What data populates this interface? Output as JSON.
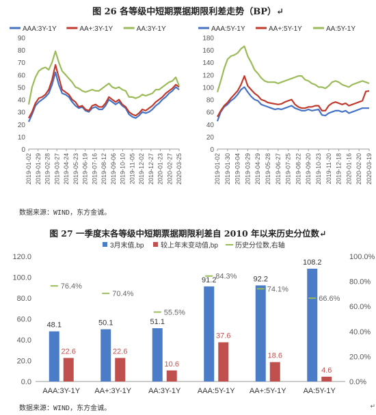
{
  "fig26": {
    "title": "图 26 各等级中短期票据期限利差走势（BP）↵"
  },
  "fig27": {
    "title": "图 27 一季度末各等级中短期票据期限利差自 2010 年以来历史分位数↵"
  },
  "source_note": "数据来源：WIND，东方金诚。",
  "source_note2": "数据来源：WIND，东方金诚。",
  "colors": {
    "blue": "#4472C4",
    "red": "#C0392B",
    "green": "#9BBB59",
    "bar_blue": "#4A7CC7",
    "bar_red": "#C0504D",
    "axis": "#888888"
  },
  "chart_data": [
    {
      "type": "line",
      "xlabel": "",
      "ylabel": "",
      "ylim": [
        0,
        90
      ],
      "y_ticks": [
        "0",
        "10",
        "20",
        "30",
        "40",
        "50",
        "60",
        "70",
        "80",
        "90"
      ],
      "x_tick_labels": [
        "2019-01-02",
        "2019-01-29",
        "2019-02-28",
        "2019-03-27",
        "2019-04-24",
        "2019-05-23",
        "2019-06-19",
        "2019-07-16",
        "2019-08-12",
        "2019-09-06",
        "2019-10-10",
        "2019-11-05",
        "2019-12-02",
        "2019-12-27",
        "2020-01-23",
        "2020-02-27",
        "2020-03-25"
      ],
      "legend_position": "top",
      "series": [
        {
          "name": "AAA:3Y-1Y",
          "color": "#4472C4",
          "values": [
            22,
            28,
            35,
            38,
            40,
            42,
            45,
            52,
            62,
            52,
            45,
            44,
            42,
            38,
            35,
            33,
            34,
            31,
            30,
            33,
            34,
            32,
            32,
            35,
            40,
            38,
            36,
            38,
            35,
            33,
            28,
            26,
            25,
            27,
            30,
            29,
            30,
            32,
            35,
            37,
            40,
            42,
            45,
            47,
            50,
            48
          ]
        },
        {
          "name": "AA+:3Y-1Y",
          "color": "#C0392B",
          "values": [
            25,
            30,
            37,
            41,
            42,
            44,
            48,
            56,
            68,
            58,
            48,
            46,
            44,
            40,
            38,
            34,
            35,
            32,
            31,
            35,
            36,
            34,
            34,
            37,
            42,
            40,
            38,
            40,
            36,
            34,
            30,
            28,
            27,
            29,
            32,
            31,
            33,
            35,
            38,
            40,
            42,
            45,
            47,
            49,
            52,
            50
          ]
        },
        {
          "name": "AA:3Y-1Y",
          "color": "#9BBB59",
          "values": [
            36,
            50,
            58,
            63,
            65,
            66,
            64,
            70,
            79,
            70,
            63,
            60,
            57,
            54,
            50,
            49,
            47,
            46,
            47,
            48,
            47,
            47,
            49,
            51,
            53,
            50,
            49,
            50,
            48,
            47,
            42,
            42,
            41,
            42,
            44,
            43,
            44,
            45,
            48,
            48,
            50,
            52,
            54,
            55,
            58,
            51
          ]
        }
      ]
    },
    {
      "type": "line",
      "xlabel": "",
      "ylabel": "",
      "ylim": [
        0,
        180
      ],
      "y_ticks": [
        "0",
        "20",
        "40",
        "60",
        "80",
        "100",
        "120",
        "140",
        "160",
        "180"
      ],
      "x_tick_labels": [
        "2019-01-02",
        "2019-01-30",
        "2019-03-04",
        "2019-03-29",
        "2019-04-29",
        "2019-05-28",
        "2019-06-27",
        "2019-07-25",
        "2019-08-22",
        "2019-09-20",
        "2019-10-23",
        "2019-11-20",
        "2019-12-18",
        "2020-01-16",
        "2020-02-20",
        "2020-03-19"
      ],
      "legend_position": "top",
      "series": [
        {
          "name": "AAA:5Y-1Y",
          "color": "#4472C4",
          "values": [
            45,
            60,
            68,
            72,
            78,
            82,
            88,
            96,
            100,
            92,
            85,
            80,
            78,
            72,
            70,
            68,
            66,
            64,
            65,
            64,
            66,
            68,
            70,
            66,
            64,
            62,
            62,
            64,
            62,
            63,
            64,
            55,
            54,
            58,
            60,
            62,
            62,
            60,
            62,
            58,
            60,
            62,
            64,
            66,
            66,
            66
          ]
        },
        {
          "name": "AA+:5Y-1Y",
          "color": "#C0392B",
          "values": [
            52,
            62,
            70,
            75,
            82,
            88,
            94,
            104,
            118,
            102,
            96,
            90,
            86,
            80,
            78,
            75,
            74,
            73,
            72,
            73,
            76,
            78,
            80,
            72,
            68,
            66,
            66,
            68,
            68,
            70,
            70,
            62,
            62,
            70,
            74,
            76,
            74,
            72,
            74,
            70,
            72,
            74,
            76,
            78,
            93,
            94
          ]
        },
        {
          "name": "AA:5Y-1Y",
          "color": "#9BBB59",
          "values": [
            92,
            110,
            130,
            145,
            150,
            152,
            155,
            162,
            166,
            150,
            140,
            128,
            122,
            115,
            110,
            108,
            108,
            108,
            106,
            108,
            110,
            112,
            114,
            116,
            118,
            118,
            112,
            110,
            106,
            104,
            100,
            100,
            98,
            102,
            108,
            110,
            108,
            104,
            102,
            100,
            104,
            106,
            108,
            110,
            108,
            106
          ]
        }
      ]
    },
    {
      "type": "bar",
      "title": "",
      "categories": [
        "AAA:3Y-1Y",
        "AA+:3Y-1Y",
        "AA:3Y-1Y",
        "AAA:5Y-1Y",
        "AA+:5Y-1Y",
        "AA:5Y-1Y"
      ],
      "ylim": [
        0,
        120
      ],
      "y_ticks": [
        "0.0",
        "20.0",
        "40.0",
        "60.0",
        "80.0",
        "100.0",
        "120.0"
      ],
      "y2lim": [
        0,
        100
      ],
      "y2_ticks": [
        "0.0%",
        "20.0%",
        "40.0%",
        "60.0%",
        "80.0%",
        "100.0%"
      ],
      "legend_position": "top",
      "series": [
        {
          "name": "3月末值,bp",
          "color": "#4A7CC7",
          "values": [
            48.1,
            50.1,
            51.1,
            91.2,
            92.2,
            108.2
          ],
          "labels": [
            "48.1",
            "50.1",
            "51.1",
            "91.2",
            "92.2",
            "108.2"
          ]
        },
        {
          "name": "较上年末变动值,bp",
          "color": "#C0504D",
          "values": [
            22.6,
            22.6,
            10.6,
            37.6,
            18.6,
            4.6
          ],
          "labels": [
            "22.6",
            "22.6",
            "10.6",
            "37.6",
            "18.6",
            "4.6"
          ]
        },
        {
          "name": "历史分位数,右轴",
          "color": "#9BBB59",
          "axis": "right",
          "values": [
            76.4,
            70.4,
            55.5,
            84.3,
            74.1,
            66.6
          ],
          "labels": [
            "76.4%",
            "70.4%",
            "55.5%",
            "84.3%",
            "74.1%",
            "66.6%"
          ]
        }
      ]
    }
  ],
  "edge_mark": "↵"
}
